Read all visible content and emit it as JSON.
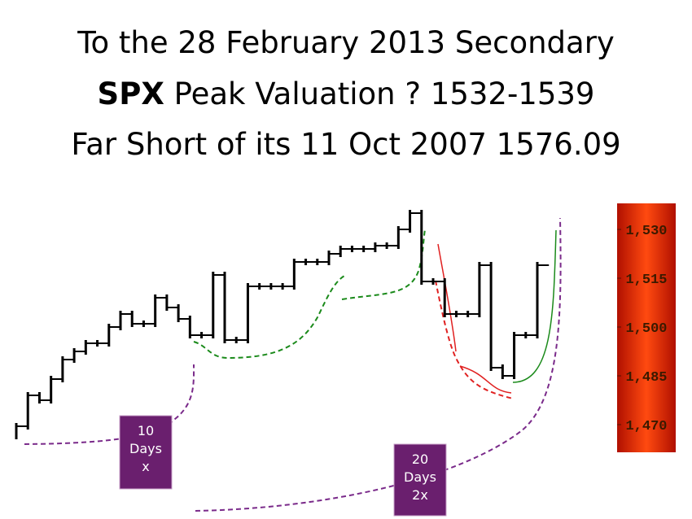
{
  "chart_data": {
    "type": "step",
    "title": [
      "To the 28 February 2013 Secondary",
      "Peak Valuation ? 1532-1539",
      "Far Short of its 11 Oct 2007 1576.09"
    ],
    "title_emphasis": "SPX",
    "values": [
      1469.5,
      1479,
      1477.5,
      1484,
      1490,
      1492.5,
      1495,
      1495,
      1500,
      1504,
      1501,
      1501,
      1509,
      1506,
      1502.5,
      1497.5,
      1497.5,
      1516,
      1496,
      1496,
      1512.5,
      1512.5,
      1512.5,
      1512.5,
      1520,
      1520,
      1520,
      1522.5,
      1524,
      1524,
      1524,
      1525,
      1525,
      1530,
      1535,
      1514,
      1514,
      1504,
      1504,
      1504,
      1519,
      1487.5,
      1485,
      1497.5,
      1497.5,
      1519
    ],
    "color": "#000000",
    "ylim": [
      1461,
      1538
    ],
    "yticks": [
      {
        "value": 1530,
        "label": "1,530"
      },
      {
        "value": 1515,
        "label": "1,515"
      },
      {
        "value": 1500,
        "label": "1,500"
      },
      {
        "value": 1485,
        "label": "1,485"
      },
      {
        "value": 1470,
        "label": "1,470"
      }
    ],
    "annotations": [
      {
        "lines": [
          "10",
          "Days",
          "x"
        ]
      },
      {
        "lines": [
          "20",
          "Days",
          "2x"
        ]
      }
    ]
  }
}
